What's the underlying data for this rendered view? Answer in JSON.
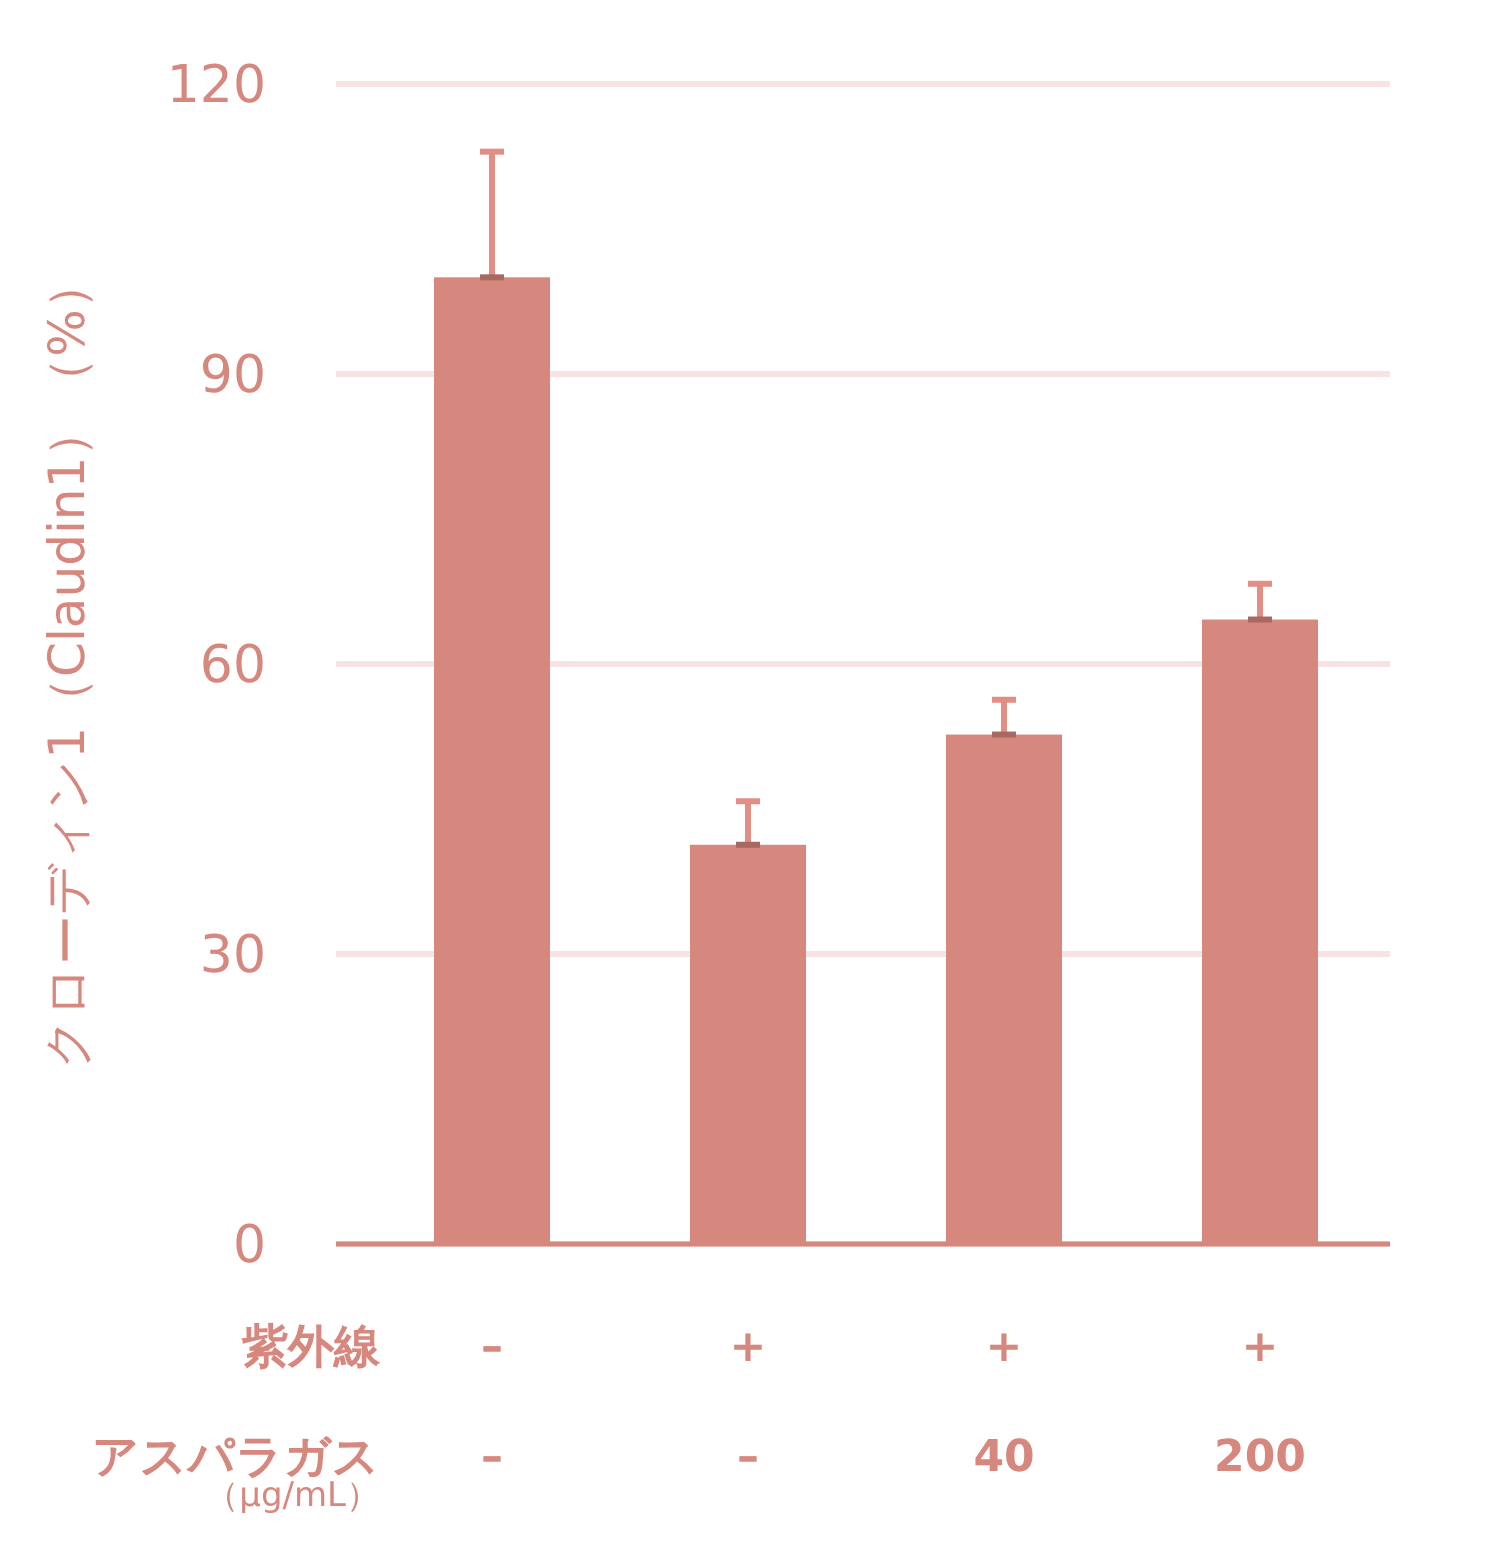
{
  "chart_data": {
    "type": "bar",
    "ylabel": "クローディン1（Claudin1）（%）",
    "categories": [
      "–\n–",
      "+\n–",
      "+\n40",
      "+\n200"
    ],
    "values": [
      100,
      41.3,
      52.7,
      64.6
    ],
    "errors": [
      [
        100,
        113
      ],
      [
        41.3,
        45.8
      ],
      [
        52.7,
        56.3
      ],
      [
        64.6,
        68.3
      ]
    ],
    "color": "#d6877e",
    "ylim": [
      0,
      120
    ],
    "yticks": [
      0,
      30,
      60,
      90,
      120
    ],
    "grid": "y",
    "annotations": [
      "紫外線",
      "アスパラガス",
      "（µg/mL）"
    ]
  }
}
